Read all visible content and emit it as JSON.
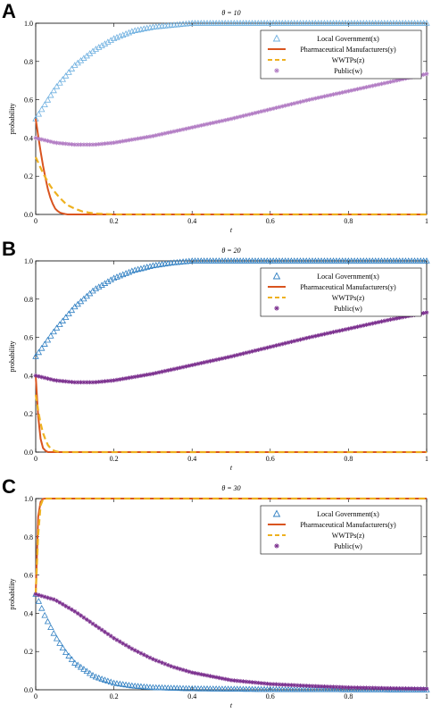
{
  "chart_data": [
    {
      "panel_label": "A",
      "type": "line",
      "title": "θ = 10",
      "xlabel": "t",
      "ylabel": "probability",
      "xlim": [
        0,
        1
      ],
      "ylim": [
        0,
        1.0
      ],
      "x_ticks": [
        "0",
        "0.2",
        "0.4",
        "0.6",
        "0.8",
        "1"
      ],
      "y_ticks": [
        "0.0",
        "0.2",
        "0.4",
        "0.6",
        "0.8",
        "1.0"
      ],
      "legend_position": "top-right",
      "series": [
        {
          "name": "Local Government(x)",
          "color": "#6fb0e0",
          "marker": "triangle",
          "style": "markers",
          "x": [
            0,
            0.05,
            0.1,
            0.15,
            0.2,
            0.25,
            0.3,
            0.35,
            0.4,
            0.5,
            0.6,
            0.8,
            1.0
          ],
          "y": [
            0.5,
            0.66,
            0.78,
            0.86,
            0.92,
            0.96,
            0.98,
            0.99,
            1.0,
            1.0,
            1.0,
            1.0,
            1.0
          ]
        },
        {
          "name": "Pharmaceutical Manufacturers(y)",
          "color": "#d9541f",
          "style": "solid",
          "x": [
            0,
            0.01,
            0.02,
            0.03,
            0.04,
            0.05,
            0.06,
            0.08,
            0.1,
            0.2,
            0.4,
            0.6,
            0.8,
            1.0
          ],
          "y": [
            0.5,
            0.36,
            0.24,
            0.14,
            0.07,
            0.03,
            0.01,
            0.0,
            0.0,
            0.0,
            0.0,
            0.0,
            0.0,
            0.0
          ]
        },
        {
          "name": "WWTPs(z)",
          "color": "#eeb120",
          "style": "dashed",
          "x": [
            0,
            0.02,
            0.04,
            0.06,
            0.08,
            0.1,
            0.12,
            0.15,
            0.2,
            0.4,
            0.6,
            0.8,
            1.0
          ],
          "y": [
            0.3,
            0.21,
            0.14,
            0.09,
            0.05,
            0.03,
            0.015,
            0.005,
            0.0,
            0.0,
            0.0,
            0.0,
            0.0
          ]
        },
        {
          "name": "Public(w)",
          "color": "#b27cc4",
          "marker": "star",
          "style": "markers",
          "x": [
            0,
            0.05,
            0.1,
            0.15,
            0.2,
            0.3,
            0.4,
            0.5,
            0.6,
            0.7,
            0.8,
            0.9,
            1.0
          ],
          "y": [
            0.4,
            0.375,
            0.365,
            0.365,
            0.375,
            0.41,
            0.455,
            0.5,
            0.55,
            0.6,
            0.645,
            0.69,
            0.735
          ]
        }
      ]
    },
    {
      "panel_label": "B",
      "type": "line",
      "title": "θ = 20",
      "xlabel": "t",
      "ylabel": "probability",
      "xlim": [
        0,
        1
      ],
      "ylim": [
        0,
        1.0
      ],
      "x_ticks": [
        "0",
        "0.2",
        "0.4",
        "0.6",
        "0.8",
        "1"
      ],
      "y_ticks": [
        "0.0",
        "0.2",
        "0.4",
        "0.6",
        "0.8",
        "1.0"
      ],
      "legend_position": "top-right",
      "series": [
        {
          "name": "Local Government(x)",
          "color": "#2f7fc2",
          "marker": "triangle",
          "style": "markers",
          "x": [
            0,
            0.05,
            0.1,
            0.15,
            0.2,
            0.25,
            0.3,
            0.35,
            0.4,
            0.5,
            0.6,
            0.8,
            1.0
          ],
          "y": [
            0.5,
            0.64,
            0.76,
            0.85,
            0.91,
            0.95,
            0.975,
            0.99,
            1.0,
            1.0,
            1.0,
            1.0,
            1.0
          ]
        },
        {
          "name": "Pharmaceutical Manufacturers(y)",
          "color": "#d9541f",
          "style": "solid",
          "x": [
            0,
            0.005,
            0.01,
            0.015,
            0.02,
            0.03,
            0.04,
            0.06,
            0.1,
            0.2,
            0.4,
            0.6,
            0.8,
            1.0
          ],
          "y": [
            0.4,
            0.22,
            0.1,
            0.04,
            0.015,
            0.0,
            0.0,
            0.0,
            0.0,
            0.0,
            0.0,
            0.0,
            0.0,
            0.0
          ]
        },
        {
          "name": "WWTPs(z)",
          "color": "#eeb120",
          "style": "dashed",
          "x": [
            0,
            0.01,
            0.02,
            0.03,
            0.04,
            0.05,
            0.06,
            0.1,
            0.2,
            0.4,
            0.6,
            0.8,
            1.0
          ],
          "y": [
            0.3,
            0.17,
            0.09,
            0.04,
            0.015,
            0.005,
            0.0,
            0.0,
            0.0,
            0.0,
            0.0,
            0.0,
            0.0
          ]
        },
        {
          "name": "Public(w)",
          "color": "#7b2f8e",
          "marker": "star",
          "style": "markers",
          "x": [
            0,
            0.05,
            0.1,
            0.15,
            0.2,
            0.3,
            0.4,
            0.5,
            0.6,
            0.7,
            0.8,
            0.9,
            1.0
          ],
          "y": [
            0.4,
            0.375,
            0.365,
            0.365,
            0.375,
            0.41,
            0.455,
            0.5,
            0.55,
            0.6,
            0.645,
            0.69,
            0.73
          ]
        }
      ]
    },
    {
      "panel_label": "C",
      "type": "line",
      "title": "θ = 30",
      "xlabel": "t",
      "ylabel": "probability",
      "xlim": [
        0,
        1
      ],
      "ylim": [
        0,
        1.0
      ],
      "x_ticks": [
        "0",
        "0.2",
        "0.4",
        "0.6",
        "0.8",
        "1"
      ],
      "y_ticks": [
        "0.0",
        "0.2",
        "0.4",
        "0.6",
        "0.8",
        "1.0"
      ],
      "legend_position": "top-right",
      "series": [
        {
          "name": "Local Government(x)",
          "color": "#2f7fc2",
          "marker": "triangle",
          "style": "markers",
          "x": [
            0,
            0.025,
            0.05,
            0.075,
            0.1,
            0.15,
            0.2,
            0.25,
            0.3,
            0.4,
            0.5,
            0.6,
            0.8,
            1.0
          ],
          "y": [
            0.5,
            0.38,
            0.28,
            0.2,
            0.14,
            0.07,
            0.035,
            0.02,
            0.012,
            0.006,
            0.004,
            0.002,
            0.001,
            0.0
          ]
        },
        {
          "name": "Pharmaceutical Manufacturers(y)",
          "color": "#d9541f",
          "style": "solid",
          "x": [
            0,
            0.003,
            0.006,
            0.01,
            0.015,
            0.02,
            0.1,
            0.2,
            0.4,
            0.6,
            0.8,
            1.0
          ],
          "y": [
            0.5,
            0.75,
            0.9,
            0.97,
            0.995,
            1.0,
            1.0,
            1.0,
            1.0,
            1.0,
            1.0,
            1.0
          ]
        },
        {
          "name": "WWTPs(z)",
          "color": "#eeb120",
          "style": "dashed",
          "x": [
            0,
            0.004,
            0.008,
            0.012,
            0.016,
            0.02,
            0.1,
            0.2,
            0.4,
            0.6,
            0.8,
            1.0
          ],
          "y": [
            0.5,
            0.72,
            0.88,
            0.96,
            0.99,
            1.0,
            1.0,
            1.0,
            1.0,
            1.0,
            1.0,
            1.0
          ]
        },
        {
          "name": "Public(w)",
          "color": "#7b2f8e",
          "marker": "star",
          "style": "markers",
          "x": [
            0,
            0.05,
            0.1,
            0.15,
            0.2,
            0.25,
            0.3,
            0.35,
            0.4,
            0.5,
            0.6,
            0.7,
            0.8,
            0.9,
            1.0
          ],
          "y": [
            0.5,
            0.47,
            0.41,
            0.34,
            0.27,
            0.21,
            0.16,
            0.12,
            0.09,
            0.05,
            0.03,
            0.02,
            0.012,
            0.008,
            0.005
          ]
        }
      ]
    }
  ]
}
